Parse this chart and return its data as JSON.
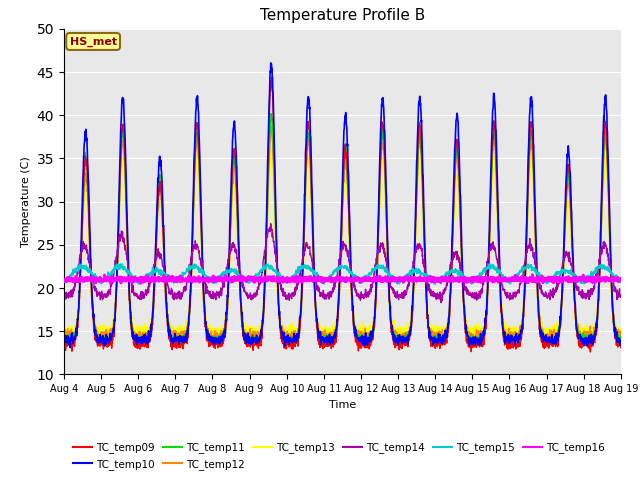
{
  "title": "Temperature Profile B",
  "xlabel": "Time",
  "ylabel": "Temperature (C)",
  "ylim": [
    10,
    50
  ],
  "series_colors": {
    "TC_temp09": "#ff0000",
    "TC_temp10": "#0000ff",
    "TC_temp11": "#00dd00",
    "TC_temp12": "#ff8800",
    "TC_temp13": "#ffff00",
    "TC_temp14": "#aa00aa",
    "TC_temp15": "#00cccc",
    "TC_temp16": "#ff00ff"
  },
  "series_lw": {
    "TC_temp09": 1.0,
    "TC_temp10": 1.2,
    "TC_temp11": 1.0,
    "TC_temp12": 1.0,
    "TC_temp13": 1.5,
    "TC_temp14": 1.0,
    "TC_temp15": 1.2,
    "TC_temp16": 2.0
  },
  "xtick_labels": [
    "Aug 4",
    "Aug 5",
    "Aug 6",
    "Aug 7",
    "Aug 8",
    "Aug 9",
    "Aug 10",
    "Aug 11",
    "Aug 12",
    "Aug 13",
    "Aug 14",
    "Aug 15",
    "Aug 16",
    "Aug 17",
    "Aug 18",
    "Aug 19"
  ],
  "annotation_text": "HS_met",
  "bg_color": "#e8e8e8",
  "title_fontsize": 11,
  "legend_order": [
    "TC_temp09",
    "TC_temp10",
    "TC_temp11",
    "TC_temp12",
    "TC_temp13",
    "TC_temp14",
    "TC_temp15",
    "TC_temp16"
  ],
  "legend_ncol": 6
}
